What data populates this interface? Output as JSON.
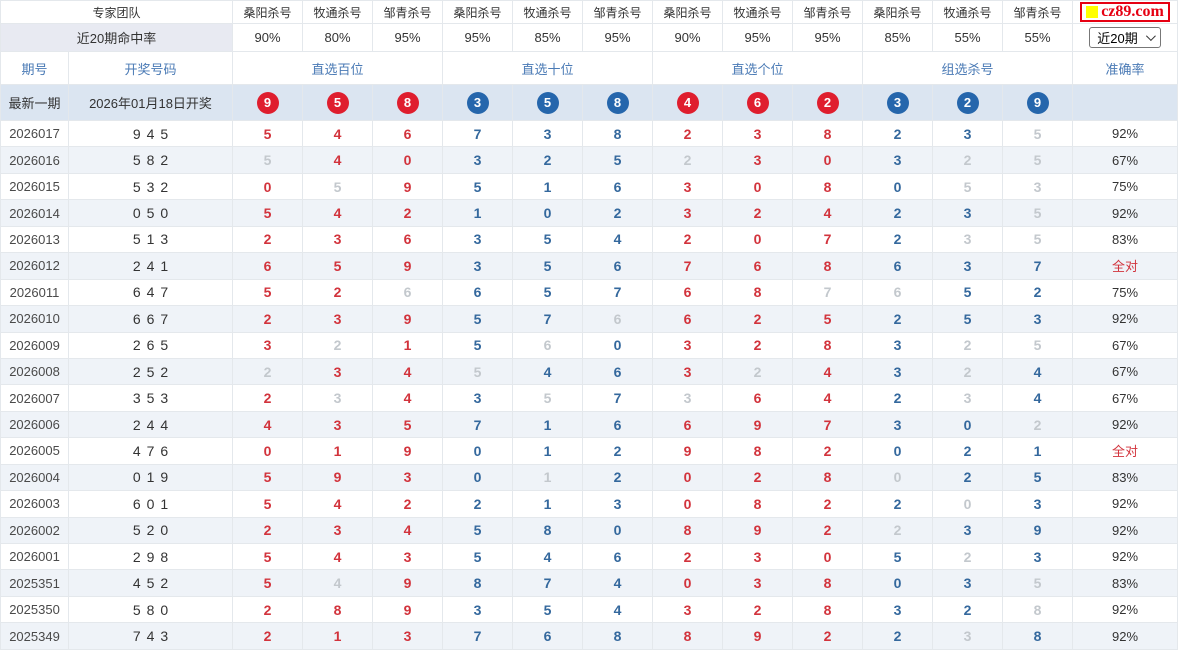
{
  "header": {
    "team_label": "专家团队",
    "experts": [
      "桑阳杀号",
      "牧通杀号",
      "邹青杀号",
      "桑阳杀号",
      "牧通杀号",
      "邹青杀号",
      "桑阳杀号",
      "牧通杀号",
      "邹青杀号",
      "桑阳杀号",
      "牧通杀号",
      "邹青杀号"
    ],
    "logo_text": "cz89.com",
    "hit_rate_label": "近20期命中率",
    "hit_rates": [
      "90%",
      "80%",
      "95%",
      "95%",
      "85%",
      "95%",
      "90%",
      "95%",
      "95%",
      "85%",
      "55%",
      "55%"
    ],
    "range_value": "近20期",
    "columns": {
      "period": "期号",
      "code": "开奖号码",
      "groups": [
        "直选百位",
        "直选十位",
        "直选个位",
        "组选杀号"
      ],
      "accuracy": "准确率"
    }
  },
  "colors": {
    "kill_red": "#d2333c",
    "kill_blue": "#34689d",
    "kill_hit_gray": "#c3c8cd",
    "ball_red": "#df1e2e",
    "ball_blue": "#2566ac",
    "latest_row_bg": "#dbe5f1",
    "stripe_bg": "#eff3f8",
    "logo_red": "#e60012",
    "logo_yellow": "#ffff00"
  },
  "latest": {
    "label": "最新一期",
    "date": "2026年01月18日开奖",
    "digits": "958358462329",
    "ball_colors": "rrrbbbrrrbbb"
  },
  "rows": [
    {
      "period": "2026017",
      "code": "945",
      "digits": "546738238235",
      "cell_colors": "rrrbbbrrrbbg",
      "acc": "92%",
      "acc_red": false
    },
    {
      "period": "2026016",
      "code": "582",
      "digits": "540325230325",
      "cell_colors": "grrbbbgrrbgg",
      "acc": "67%",
      "acc_red": false
    },
    {
      "period": "2026015",
      "code": "532",
      "digits": "059516308053",
      "cell_colors": "rgrbbbrrrbgg",
      "acc": "75%",
      "acc_red": false
    },
    {
      "period": "2026014",
      "code": "050",
      "digits": "542102324235",
      "cell_colors": "rrrbbbrrrbbg",
      "acc": "92%",
      "acc_red": false
    },
    {
      "period": "2026013",
      "code": "513",
      "digits": "236354207235",
      "cell_colors": "rrrbbbrrrbgg",
      "acc": "83%",
      "acc_red": false
    },
    {
      "period": "2026012",
      "code": "241",
      "digits": "659356768637",
      "cell_colors": "rrrbbbrrrbbb",
      "acc": "全对",
      "acc_red": true
    },
    {
      "period": "2026011",
      "code": "647",
      "digits": "526657687652",
      "cell_colors": "rrgbbbrrggbb",
      "acc": "75%",
      "acc_red": false
    },
    {
      "period": "2026010",
      "code": "667",
      "digits": "239576625253",
      "cell_colors": "rrrbbgrrrbbb",
      "acc": "92%",
      "acc_red": false
    },
    {
      "period": "2026009",
      "code": "265",
      "digits": "321560328325",
      "cell_colors": "rgrbgbrrrbgg",
      "acc": "67%",
      "acc_red": false
    },
    {
      "period": "2026008",
      "code": "252",
      "digits": "234546324324",
      "cell_colors": "grrgbbrgrbgb",
      "acc": "67%",
      "acc_red": false
    },
    {
      "period": "2026007",
      "code": "353",
      "digits": "234357364234",
      "cell_colors": "rgrbgbgrrbgb",
      "acc": "67%",
      "acc_red": false
    },
    {
      "period": "2026006",
      "code": "244",
      "digits": "435716697302",
      "cell_colors": "rrrbbbrrrbbg",
      "acc": "92%",
      "acc_red": false
    },
    {
      "period": "2026005",
      "code": "476",
      "digits": "019012982021",
      "cell_colors": "rrrbbbrrrbbb",
      "acc": "全对",
      "acc_red": true
    },
    {
      "period": "2026004",
      "code": "019",
      "digits": "593012028025",
      "cell_colors": "rrrbgbrrrgbb",
      "acc": "83%",
      "acc_red": false
    },
    {
      "period": "2026003",
      "code": "601",
      "digits": "542213082203",
      "cell_colors": "rrrbbbrrrbgb",
      "acc": "92%",
      "acc_red": false
    },
    {
      "period": "2026002",
      "code": "520",
      "digits": "234580892239",
      "cell_colors": "rrrbbbrrrgbb",
      "acc": "92%",
      "acc_red": false
    },
    {
      "period": "2026001",
      "code": "298",
      "digits": "543546230523",
      "cell_colors": "rrrbbbrrrbgb",
      "acc": "92%",
      "acc_red": false
    },
    {
      "period": "2025351",
      "code": "452",
      "digits": "549874038035",
      "cell_colors": "rgrbbbrrrbbg",
      "acc": "83%",
      "acc_red": false
    },
    {
      "period": "2025350",
      "code": "580",
      "digits": "289354328328",
      "cell_colors": "rrrbbbrrrbbg",
      "acc": "92%",
      "acc_red": false
    },
    {
      "period": "2025349",
      "code": "743",
      "digits": "213768892238",
      "cell_colors": "rrrbbbrrrbgb",
      "acc": "92%",
      "acc_red": false
    }
  ]
}
